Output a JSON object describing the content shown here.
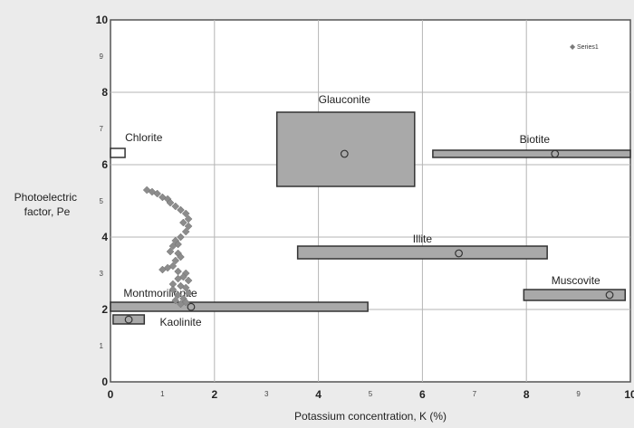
{
  "chart_data": {
    "type": "scatter",
    "xlabel": "Potassium concentration, K (%)",
    "ylabel_lines": [
      "Photoelectric",
      "factor, Pe"
    ],
    "xlim": [
      0,
      10
    ],
    "ylim": [
      0,
      10
    ],
    "grid": true,
    "x_major_ticks": [
      0,
      2,
      4,
      6,
      8,
      10
    ],
    "x_minor_ticks": [
      1,
      3,
      5,
      7,
      9
    ],
    "y_major_ticks": [
      0,
      2,
      4,
      6,
      8,
      10
    ],
    "y_minor_ticks": [
      1,
      3,
      5,
      7,
      9
    ],
    "legend": {
      "label": "Series1",
      "placement": "top-right"
    },
    "minerals": [
      {
        "name": "Glauconite",
        "kmin": 3.2,
        "kmax": 5.85,
        "pmin": 5.4,
        "pmax": 7.45,
        "cx": 4.5,
        "cy": 6.3,
        "label_x": 4.5,
        "label_y": 7.7,
        "label_anchor": "middle"
      },
      {
        "name": "Biotite",
        "kmin": 6.2,
        "kmax": 10.0,
        "pmin": 6.2,
        "pmax": 6.4,
        "cx": 8.55,
        "cy": 6.3,
        "label_x": 8.45,
        "label_y": 6.6,
        "label_anchor": "end"
      },
      {
        "name": "Chlorite",
        "kmin": 0.0,
        "kmax": 0.28,
        "pmin": 6.2,
        "pmax": 6.45,
        "cx": null,
        "cy": null,
        "label_x": 0.28,
        "label_y": 6.65,
        "label_anchor": "start"
      },
      {
        "name": "Illite",
        "kmin": 3.6,
        "kmax": 8.4,
        "pmin": 3.4,
        "pmax": 3.75,
        "cx": 6.7,
        "cy": 3.55,
        "label_x": 6.0,
        "label_y": 3.85,
        "label_anchor": "middle"
      },
      {
        "name": "Muscovite",
        "kmin": 7.95,
        "kmax": 9.9,
        "pmin": 2.25,
        "pmax": 2.55,
        "cx": 9.6,
        "cy": 2.4,
        "label_x": 8.95,
        "label_y": 2.7,
        "label_anchor": "middle"
      },
      {
        "name": "Montmorillonite",
        "kmin": 0.0,
        "kmax": 4.95,
        "pmin": 1.95,
        "pmax": 2.2,
        "cx": 1.55,
        "cy": 2.07,
        "label_x": 0.25,
        "label_y": 2.35,
        "label_anchor": "start"
      },
      {
        "name": "Kaolinite",
        "kmin": 0.05,
        "kmax": 0.65,
        "pmin": 1.6,
        "pmax": 1.85,
        "cx": 0.35,
        "cy": 1.72,
        "label_x": 0.95,
        "label_y": 1.55,
        "label_anchor": "start"
      }
    ],
    "series": [
      {
        "name": "Series1",
        "points": [
          [
            0.7,
            5.3
          ],
          [
            0.8,
            5.25
          ],
          [
            0.9,
            5.2
          ],
          [
            1.0,
            5.1
          ],
          [
            1.1,
            5.05
          ],
          [
            1.15,
            4.95
          ],
          [
            1.25,
            4.85
          ],
          [
            1.35,
            4.75
          ],
          [
            1.45,
            4.65
          ],
          [
            1.5,
            4.5
          ],
          [
            1.4,
            4.4
          ],
          [
            1.5,
            4.3
          ],
          [
            1.45,
            4.15
          ],
          [
            1.35,
            4.0
          ],
          [
            1.25,
            3.9
          ],
          [
            1.3,
            3.8
          ],
          [
            1.2,
            3.75
          ],
          [
            1.15,
            3.6
          ],
          [
            1.3,
            3.55
          ],
          [
            1.35,
            3.45
          ],
          [
            1.25,
            3.35
          ],
          [
            1.2,
            3.2
          ],
          [
            1.1,
            3.15
          ],
          [
            1.0,
            3.1
          ],
          [
            1.3,
            3.05
          ],
          [
            1.45,
            3.0
          ],
          [
            1.4,
            2.9
          ],
          [
            1.3,
            2.85
          ],
          [
            1.5,
            2.8
          ],
          [
            1.2,
            2.7
          ],
          [
            1.35,
            2.65
          ],
          [
            1.45,
            2.6
          ],
          [
            1.2,
            2.55
          ],
          [
            1.5,
            2.45
          ],
          [
            1.3,
            2.4
          ],
          [
            1.4,
            2.3
          ],
          [
            1.25,
            2.25
          ],
          [
            1.45,
            2.2
          ],
          [
            1.35,
            2.15
          ]
        ]
      }
    ]
  }
}
